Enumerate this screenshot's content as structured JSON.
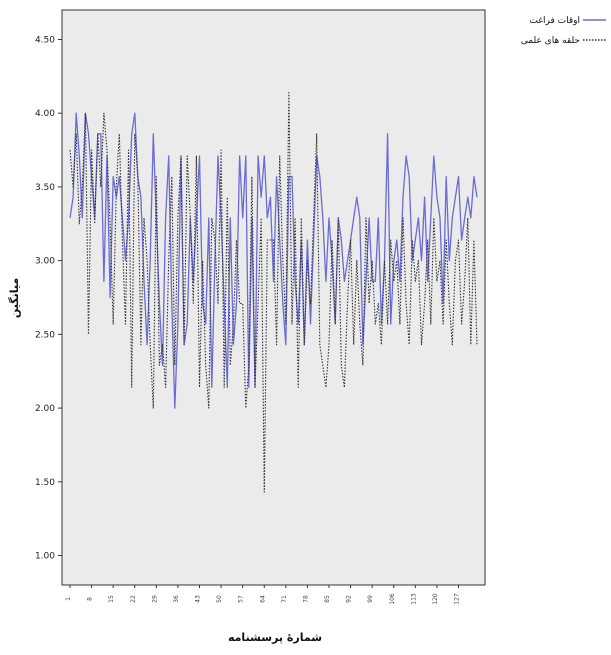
{
  "chart_data": {
    "type": "line",
    "title": "",
    "xlabel": "شمارهٔ پرسشنامه",
    "ylabel": "میانگین",
    "ylim": [
      0.8,
      4.7
    ],
    "yticks": [
      "1.00",
      "1.50",
      "2.00",
      "2.50",
      "3.00",
      "3.50",
      "4.00",
      "4.50"
    ],
    "xticks": [
      "1",
      "8",
      "15",
      "22",
      "29",
      "36",
      "43",
      "50",
      "57",
      "64",
      "71",
      "78",
      "85",
      "92",
      "99",
      "106",
      "113",
      "120",
      "127"
    ],
    "grid": false,
    "legend_position": "top-right",
    "x": [
      1,
      2,
      3,
      4,
      5,
      6,
      7,
      8,
      9,
      10,
      11,
      12,
      13,
      14,
      15,
      16,
      17,
      18,
      19,
      20,
      21,
      22,
      23,
      24,
      25,
      26,
      27,
      28,
      29,
      30,
      31,
      32,
      33,
      34,
      35,
      36,
      37,
      38,
      39,
      40,
      41,
      42,
      43,
      44,
      45,
      46,
      47,
      48,
      49,
      50,
      51,
      52,
      53,
      54,
      55,
      56,
      57,
      58,
      59,
      60,
      61,
      62,
      63,
      64,
      65,
      66,
      67,
      68,
      69,
      70,
      71,
      72,
      73,
      74,
      75,
      76,
      77,
      78,
      79,
      80,
      81,
      82,
      83,
      84,
      85,
      86,
      87,
      88,
      89,
      90,
      91,
      92,
      93,
      94,
      95,
      96,
      97,
      98,
      99,
      100,
      101,
      102,
      103,
      104,
      105,
      106,
      107,
      108,
      109,
      110,
      111,
      112,
      113,
      114,
      115,
      116,
      117,
      118,
      119,
      120,
      121,
      122,
      123,
      124,
      125,
      126,
      127,
      128,
      129,
      130,
      131,
      132,
      133
    ],
    "series": [
      {
        "name": "اوقات فراغت",
        "color": "#6b6bd6",
        "style": "solid",
        "values": [
          3.29,
          3.43,
          4.0,
          3.71,
          3.29,
          4.0,
          3.86,
          3.57,
          3.29,
          3.86,
          3.86,
          2.86,
          3.71,
          2.75,
          3.57,
          3.43,
          3.57,
          3.29,
          3.0,
          3.29,
          3.86,
          4.0,
          3.57,
          3.43,
          2.86,
          2.43,
          3.0,
          3.86,
          3.29,
          2.71,
          2.29,
          3.29,
          3.71,
          2.71,
          2.0,
          2.57,
          3.71,
          2.43,
          2.57,
          3.29,
          2.86,
          3.29,
          3.71,
          2.71,
          2.57,
          3.29,
          2.14,
          3.0,
          3.71,
          3.29,
          2.71,
          2.14,
          3.29,
          2.43,
          2.71,
          3.71,
          3.29,
          3.71,
          2.14,
          3.29,
          2.14,
          3.71,
          3.43,
          3.71,
          3.29,
          3.43,
          2.86,
          3.57,
          3.14,
          2.71,
          2.43,
          3.57,
          3.57,
          2.86,
          2.57,
          3.14,
          2.43,
          3.14,
          2.57,
          3.14,
          3.71,
          3.57,
          3.29,
          2.86,
          3.29,
          3.0,
          2.57,
          3.29,
          3.14,
          2.86,
          3.0,
          3.14,
          3.29,
          3.43,
          3.29,
          2.43,
          2.86,
          3.29,
          2.86,
          2.86,
          3.29,
          2.57,
          3.0,
          3.86,
          2.57,
          3.0,
          3.14,
          2.86,
          3.43,
          3.71,
          3.57,
          3.0,
          3.14,
          3.29,
          3.0,
          3.43,
          2.86,
          3.29,
          3.71,
          3.43,
          3.29,
          2.71,
          3.57,
          3.0,
          3.29,
          3.43,
          3.57,
          3.14,
          3.29,
          3.43,
          3.29,
          3.57,
          3.43
        ]
      },
      {
        "name": "حلقه های علمی",
        "color": "#333333",
        "style": "dotted",
        "values": [
          3.75,
          3.5,
          3.86,
          3.25,
          3.5,
          4.0,
          2.5,
          3.75,
          3.25,
          3.86,
          3.5,
          4.0,
          3.75,
          3.25,
          2.57,
          3.5,
          3.86,
          3.14,
          2.57,
          3.75,
          2.14,
          3.86,
          3.57,
          2.43,
          3.29,
          3.0,
          2.43,
          2.0,
          3.57,
          2.29,
          2.43,
          2.14,
          3.0,
          3.57,
          2.29,
          3.29,
          3.71,
          2.43,
          3.71,
          3.29,
          2.71,
          3.71,
          2.14,
          3.0,
          2.29,
          2.0,
          3.29,
          3.14,
          2.71,
          3.75,
          2.14,
          3.43,
          2.29,
          2.57,
          3.14,
          2.71,
          2.71,
          2.0,
          2.29,
          3.57,
          2.14,
          2.71,
          3.29,
          1.43,
          3.14,
          3.14,
          3.14,
          2.43,
          3.71,
          3.0,
          2.57,
          4.14,
          2.57,
          3.29,
          2.14,
          3.29,
          2.43,
          3.0,
          2.71,
          3.29,
          3.86,
          2.43,
          2.29,
          2.14,
          2.43,
          3.14,
          2.57,
          3.29,
          2.29,
          2.14,
          2.71,
          3.14,
          2.43,
          3.0,
          2.57,
          2.29,
          3.29,
          2.71,
          3.0,
          2.57,
          2.71,
          2.43,
          3.0,
          2.57,
          3.14,
          2.86,
          3.0,
          2.57,
          3.29,
          2.71,
          2.43,
          3.14,
          2.86,
          3.0,
          2.43,
          2.71,
          3.14,
          2.57,
          3.29,
          2.86,
          3.0,
          2.57,
          3.14,
          2.71,
          2.43,
          3.0,
          3.14,
          2.57,
          2.86,
          3.29,
          2.43,
          3.14,
          2.43
        ]
      }
    ]
  }
}
